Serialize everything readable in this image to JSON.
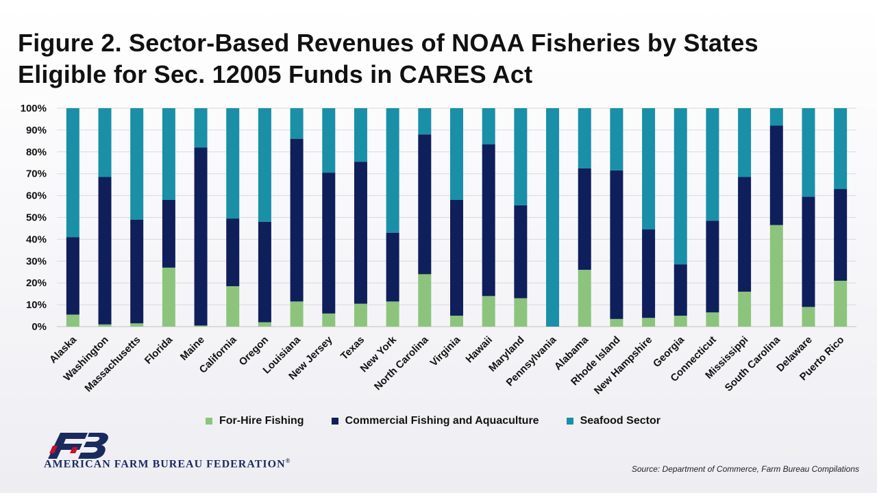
{
  "title_lines": [
    "Figure 2. Sector-Based Revenues of NOAA Fisheries by States",
    "Eligible for Sec. 12005 Funds in CARES Act"
  ],
  "legend": {
    "for_hire": "For-Hire Fishing",
    "commercial": "Commercial Fishing and Aquaculture",
    "seafood": "Seafood Sector"
  },
  "source": "Source:  Department  of Commerce,  Farm Bureau  Compilations",
  "org_name": "AMERICAN FARM BUREAU FEDERATION",
  "org_mark": "®",
  "logo_icon": "fb-logo-icon",
  "chart_data": {
    "type": "bar",
    "stacked": true,
    "categories": [
      "Alaska",
      "Washington",
      "Massachusetts",
      "Florida",
      "Maine",
      "California",
      "Oregon",
      "Louisiana",
      "New Jersey",
      "Texas",
      "New York",
      "North Carolina",
      "Virginia",
      "Hawaii",
      "Maryland",
      "Pennsylvania",
      "Alabama",
      "Rhode Island",
      "New Hampshire",
      "Georgia",
      "Connecticut",
      "Mississippi",
      "South Carolina",
      "Delaware",
      "Puerto Rico"
    ],
    "series": [
      {
        "name": "For-Hire Fishing",
        "color": "#8cc47e",
        "values": [
          5.5,
          1,
          1.5,
          27,
          0.5,
          18.5,
          2,
          11.5,
          6,
          10.5,
          11.5,
          24,
          5,
          14,
          13,
          0,
          26,
          3.5,
          4,
          5,
          6.5,
          16,
          46.5,
          9,
          21
        ]
      },
      {
        "name": "Commercial Fishing and Aquaculture",
        "color": "#0f1f5c",
        "values": [
          35.5,
          67.5,
          47.5,
          31,
          81.5,
          31,
          46,
          74.5,
          64.5,
          65,
          31.5,
          64,
          53,
          69.5,
          42.5,
          0,
          46.5,
          68,
          40.5,
          23.5,
          42,
          52.5,
          45.5,
          50.5,
          42
        ]
      },
      {
        "name": "Seafood Sector",
        "color": "#1a8fa8",
        "values": [
          59,
          31.5,
          51,
          42,
          18,
          50.5,
          52,
          14,
          29.5,
          24.5,
          57,
          12,
          42,
          16.5,
          44.5,
          100,
          27.5,
          28.5,
          55.5,
          71.5,
          51.5,
          31.5,
          8,
          40.5,
          37
        ]
      }
    ],
    "yticks": [
      "0%",
      "10%",
      "20%",
      "30%",
      "40%",
      "50%",
      "60%",
      "70%",
      "80%",
      "90%",
      "100%"
    ],
    "ylim": [
      0,
      100
    ],
    "grid": true,
    "legend_position": "bottom"
  }
}
